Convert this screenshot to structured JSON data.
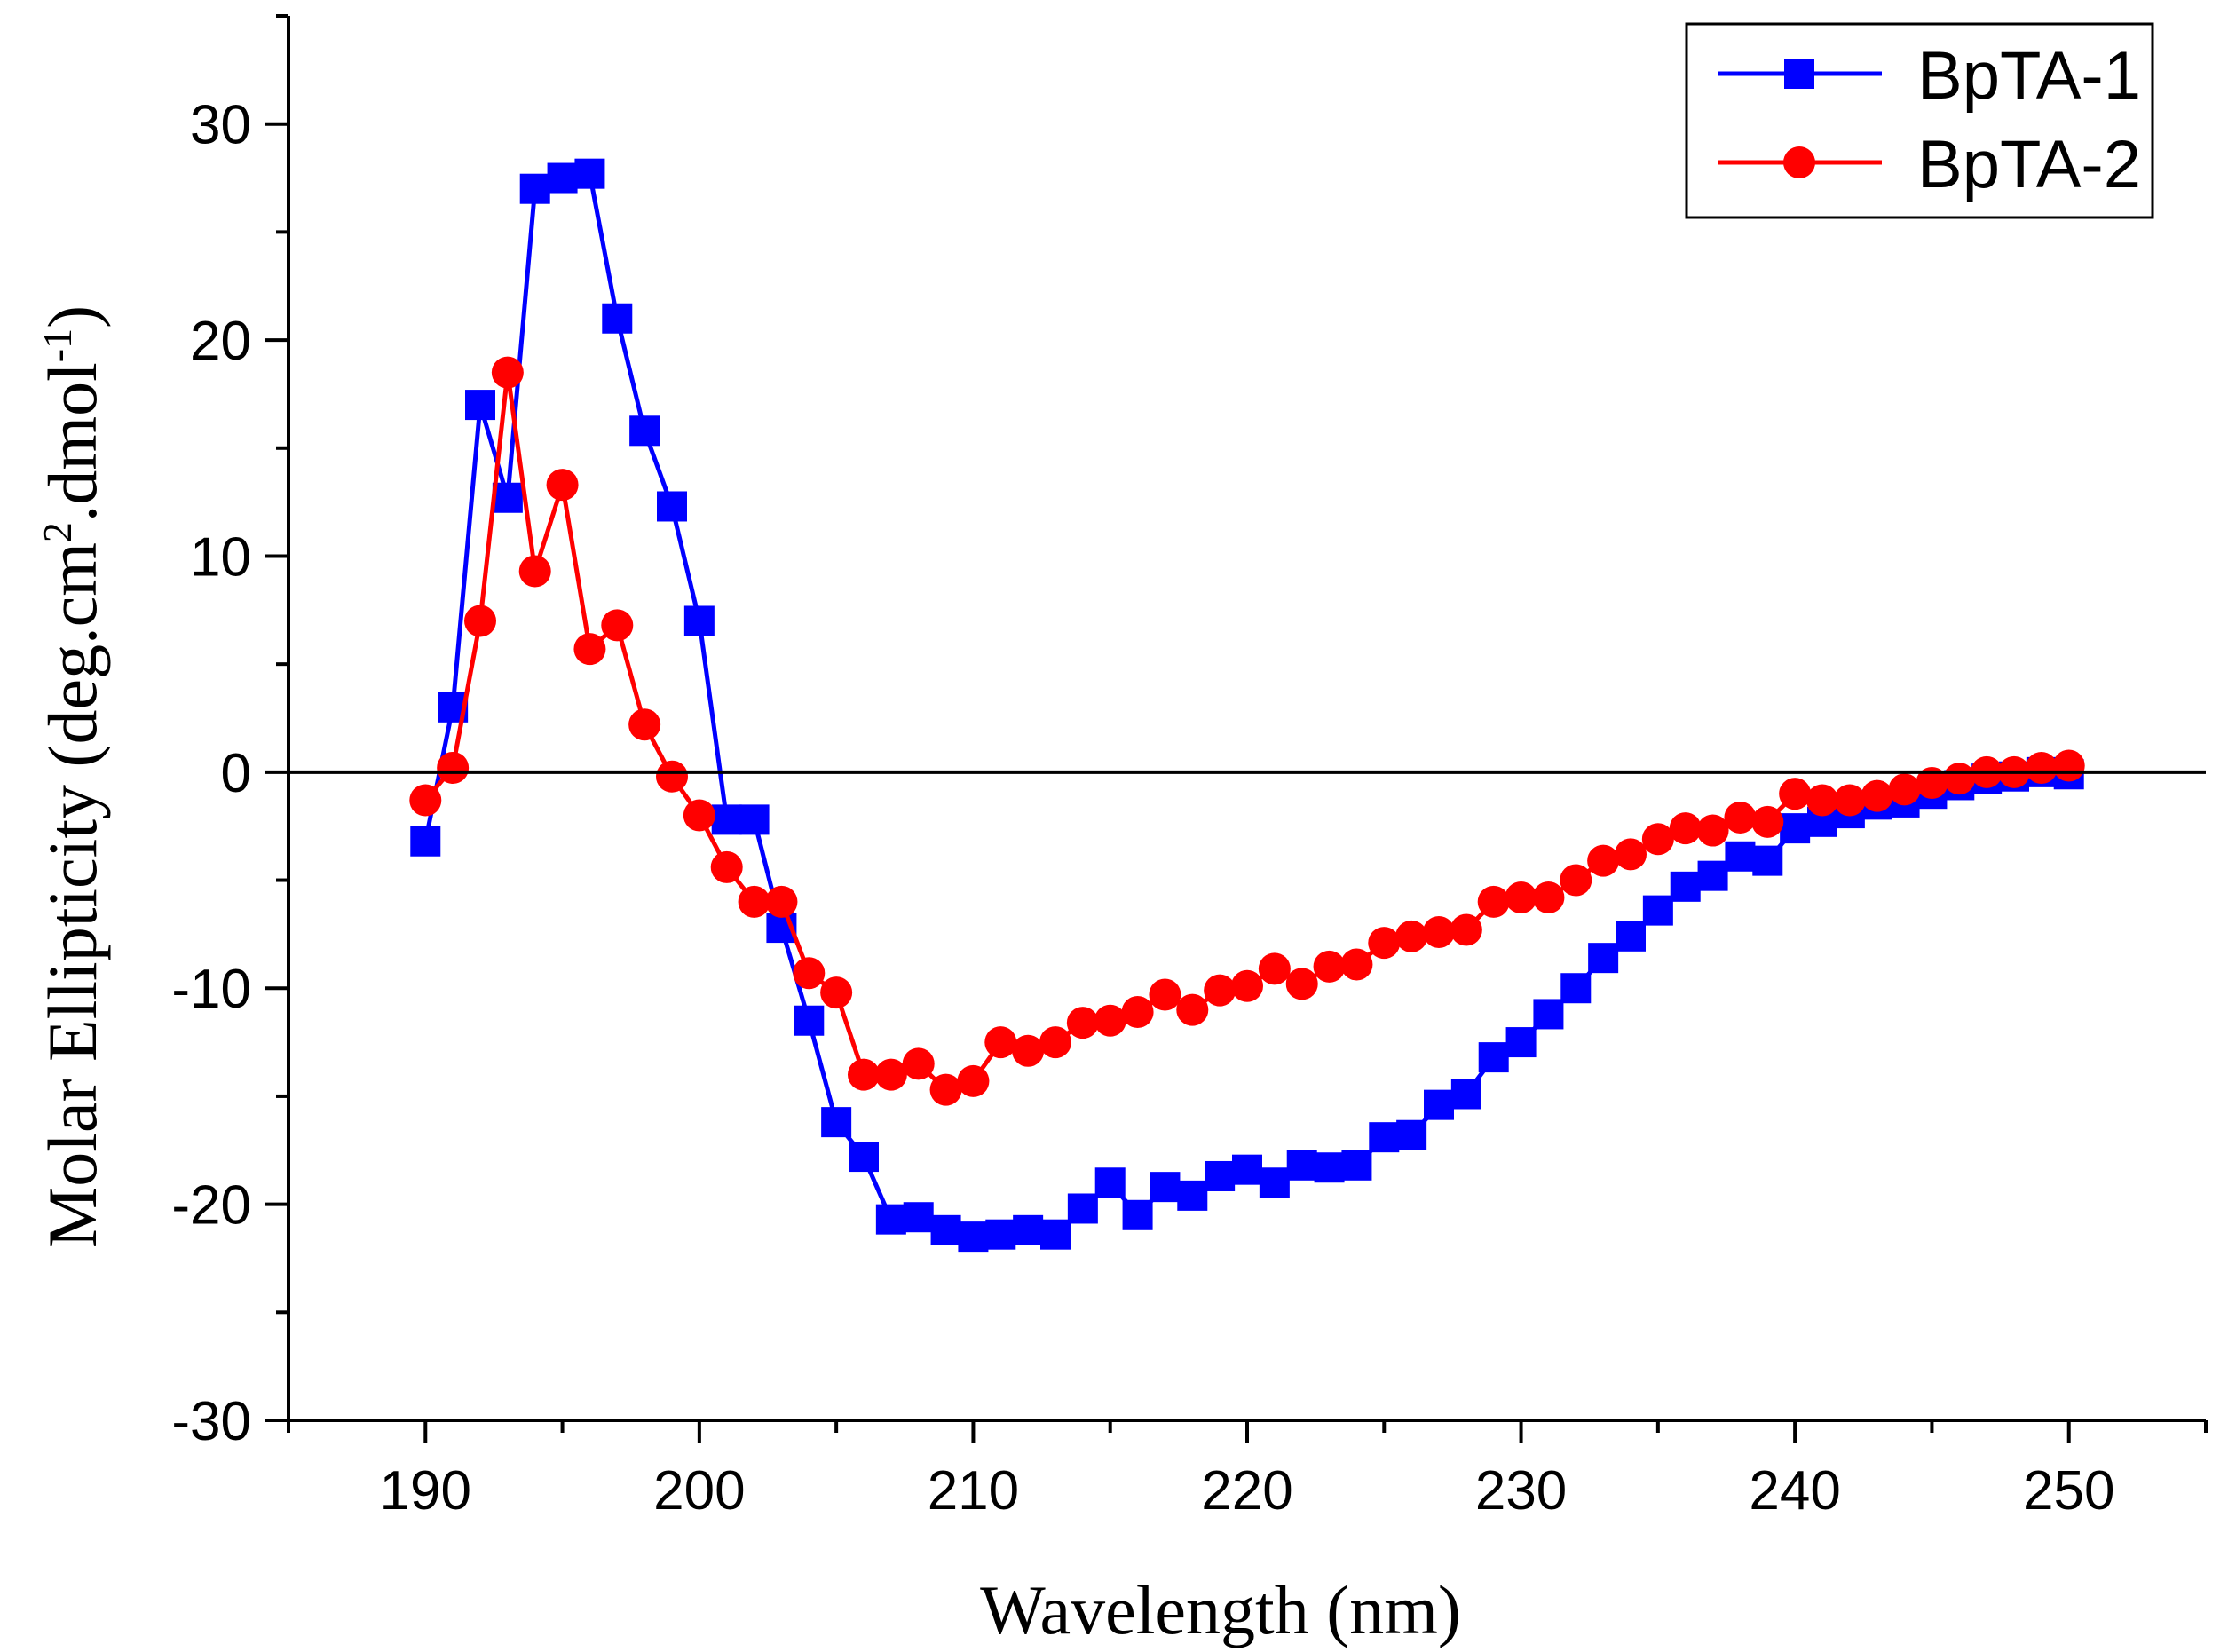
{
  "chart_data": {
    "type": "line",
    "title": "",
    "xlabel": "Wavelength (nm)",
    "ylabel_main": "Molar Ellipticity (deg.cm",
    "ylabel_sup1": "2",
    "ylabel_mid": ".dmol",
    "ylabel_sup2": "-1",
    "ylabel_end": ")",
    "xlim": [
      185,
      255
    ],
    "ylim": [
      -30,
      35
    ],
    "xticks": [
      "190",
      "200",
      "210",
      "220",
      "230",
      "240",
      "250"
    ],
    "yticks": [
      "-30",
      "-20",
      "-10",
      "0",
      "10",
      "20",
      "30"
    ],
    "grid": false,
    "zero_line": true,
    "legend_position": "top-right",
    "series": [
      {
        "name": "BpTA-1",
        "color": "#0000ff",
        "marker": "square",
        "x": [
          190,
          191,
          192,
          193,
          194,
          195,
          196,
          197,
          198,
          199,
          200,
          201,
          202,
          203,
          204,
          205,
          206,
          207,
          208,
          209,
          210,
          211,
          212,
          213,
          214,
          215,
          216,
          217,
          218,
          219,
          220,
          221,
          222,
          223,
          224,
          225,
          226,
          227,
          228,
          229,
          230,
          231,
          232,
          233,
          234,
          235,
          236,
          237,
          238,
          239,
          240,
          241,
          242,
          243,
          244,
          245,
          246,
          247,
          248,
          249,
          250
        ],
        "values": [
          -3.2,
          3.0,
          17.0,
          12.7,
          27.0,
          27.5,
          27.7,
          21.0,
          15.8,
          12.3,
          7.0,
          -2.2,
          -2.2,
          -7.2,
          -11.5,
          -16.2,
          -17.8,
          -20.7,
          -20.6,
          -21.2,
          -21.5,
          -21.4,
          -21.2,
          -21.4,
          -20.2,
          -19.0,
          -20.5,
          -19.2,
          -19.6,
          -18.7,
          -18.4,
          -19.0,
          -18.2,
          -18.3,
          -18.2,
          -16.9,
          -16.8,
          -15.4,
          -14.9,
          -13.2,
          -12.5,
          -11.2,
          -10.0,
          -8.6,
          -7.6,
          -6.4,
          -5.3,
          -4.8,
          -3.9,
          -4.1,
          -2.6,
          -2.3,
          -1.9,
          -1.5,
          -1.4,
          -1.0,
          -0.6,
          -0.3,
          -0.2,
          0.0,
          -0.1
        ]
      },
      {
        "name": "BpTA-2",
        "color": "#ff0000",
        "marker": "circle",
        "x": [
          190,
          191,
          192,
          193,
          194,
          195,
          196,
          197,
          198,
          199,
          200,
          201,
          202,
          203,
          204,
          205,
          206,
          207,
          208,
          209,
          210,
          211,
          212,
          213,
          214,
          215,
          216,
          217,
          218,
          219,
          220,
          221,
          222,
          223,
          224,
          225,
          226,
          227,
          228,
          229,
          230,
          231,
          232,
          233,
          234,
          235,
          236,
          237,
          238,
          239,
          240,
          241,
          242,
          243,
          244,
          245,
          246,
          247,
          248,
          249,
          250
        ],
        "values": [
          -1.3,
          0.2,
          7.0,
          18.5,
          9.3,
          13.3,
          5.7,
          6.8,
          2.2,
          -0.2,
          -2.0,
          -4.4,
          -6.0,
          -6.0,
          -9.3,
          -10.2,
          -14.0,
          -14.0,
          -13.5,
          -14.7,
          -14.3,
          -12.5,
          -12.9,
          -12.5,
          -11.6,
          -11.5,
          -11.1,
          -10.3,
          -11.0,
          -10.1,
          -9.9,
          -9.1,
          -9.8,
          -9.0,
          -8.9,
          -7.9,
          -7.6,
          -7.4,
          -7.3,
          -6.0,
          -5.8,
          -5.8,
          -5.0,
          -4.1,
          -3.8,
          -3.1,
          -2.6,
          -2.7,
          -2.1,
          -2.3,
          -1.0,
          -1.3,
          -1.3,
          -1.1,
          -0.8,
          -0.5,
          -0.3,
          0.0,
          0.0,
          0.2,
          0.3
        ]
      }
    ]
  }
}
